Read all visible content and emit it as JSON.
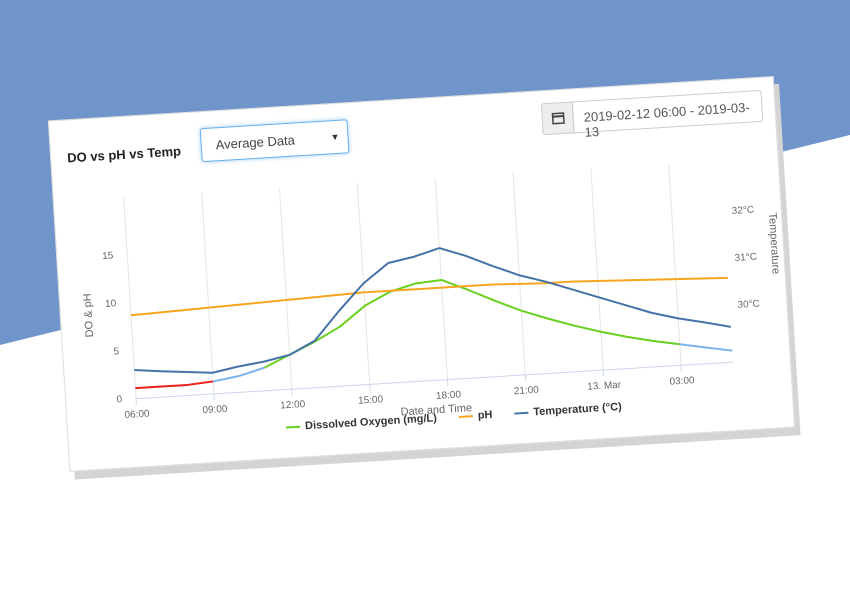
{
  "header": {
    "title": "DO vs pH vs Temp",
    "select": "Average Data",
    "date_range": "2019-02-12 06:00 - 2019-03-13"
  },
  "chart_data": {
    "type": "line",
    "x_label": "Date and Time",
    "y_label": "DO & pH",
    "y2_label": "Temperature",
    "x": [
      0,
      1,
      2,
      3,
      4,
      5,
      6,
      7,
      8,
      9,
      10,
      11,
      12,
      13,
      14,
      15,
      16,
      17,
      18,
      19,
      20,
      21,
      22,
      23
    ],
    "xlim": [
      0,
      23
    ],
    "xticks": [
      {
        "value": 0,
        "label": "06:00"
      },
      {
        "value": 3,
        "label": "09:00"
      },
      {
        "value": 6,
        "label": "12:00"
      },
      {
        "value": 9,
        "label": "15:00"
      },
      {
        "value": 12,
        "label": "18:00"
      },
      {
        "value": 15,
        "label": "21:00"
      },
      {
        "value": 18,
        "label": "13. Mar"
      },
      {
        "value": 21,
        "label": "03:00"
      }
    ],
    "ylim": [
      0,
      20
    ],
    "yticks": [
      0,
      5,
      10,
      15
    ],
    "y2lim": [
      28.8,
      32.88
    ],
    "y2ticks": [
      {
        "value": 30,
        "label": "30°C"
      },
      {
        "value": 31,
        "label": "31°C"
      },
      {
        "value": 32,
        "label": "32°C"
      }
    ],
    "grid": "x",
    "series": [
      {
        "name": "Dissolved Oxygen (mg/L)",
        "color": "#6ad01f",
        "zones": [
          {
            "to": 3,
            "color": "#e8221b"
          },
          {
            "to": 5,
            "color": "#7cb5ec"
          },
          {
            "to": 21,
            "color": "#6ad01f"
          },
          {
            "to": 23,
            "color": "#7cb5ec"
          }
        ],
        "values": [
          1.1,
          1.1,
          1.1,
          1.3,
          1.7,
          2.4,
          3.6,
          4.8,
          6.2,
          8.2,
          9.5,
          10.2,
          10.4,
          9.2,
          7.9,
          6.7,
          5.7,
          4.8,
          4.0,
          3.3,
          2.7,
          2.2,
          1.7,
          1.2
        ]
      },
      {
        "name": "pH",
        "color": "#f7a520",
        "values": [
          8.7,
          8.8,
          8.9,
          9.0,
          9.1,
          9.2,
          9.3,
          9.4,
          9.5,
          9.6,
          9.6,
          9.6,
          9.6,
          9.6,
          9.6,
          9.5,
          9.4,
          9.4,
          9.3,
          9.2,
          9.1,
          9.0,
          8.9,
          8.8
        ]
      },
      {
        "name": "Temperature (°C)",
        "color": "#4572a7",
        "axis": "y2",
        "values": [
          29.41,
          29.35,
          29.3,
          29.25,
          29.35,
          29.42,
          29.53,
          29.8,
          30.4,
          30.95,
          31.35,
          31.45,
          31.6,
          31.4,
          31.15,
          30.92,
          30.75,
          30.55,
          30.35,
          30.15,
          29.95,
          29.8,
          29.68,
          29.55
        ]
      }
    ]
  }
}
